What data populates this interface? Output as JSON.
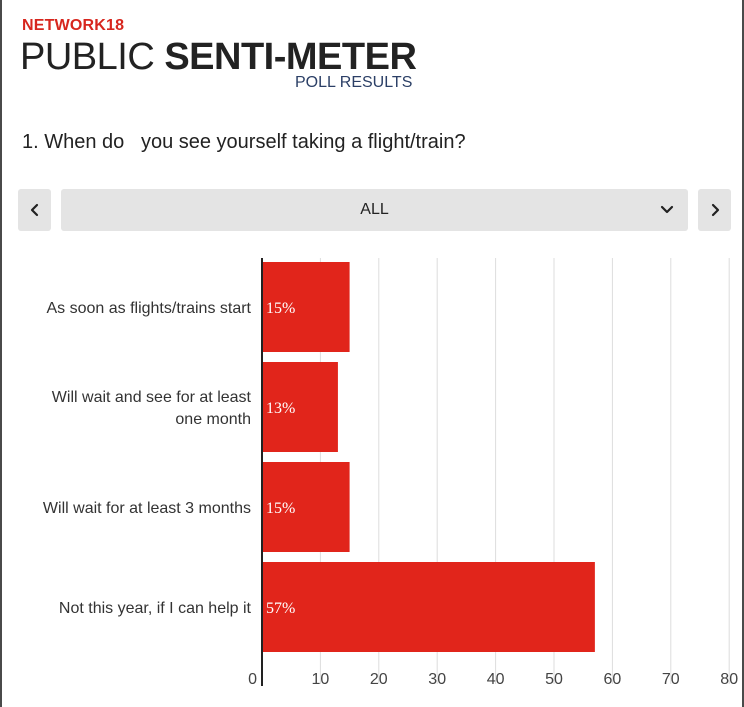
{
  "header": {
    "brand": "NETWORK18",
    "title_light": "PUBLIC ",
    "title_bold": "SENTI-METER",
    "subtitle": "POLL RESULTS"
  },
  "question": "1. When do   you see yourself taking a flight/train?",
  "filter": {
    "selected": "ALL",
    "prev_icon": "chevron-left-icon",
    "next_icon": "chevron-right-icon",
    "dropdown_icon": "chevron-down-icon"
  },
  "colors": {
    "bar": "#e1251b",
    "brand": "#d7261e",
    "subtitle": "#2b3f66",
    "control_bg": "#e4e4e4"
  },
  "chart_data": {
    "type": "bar",
    "orientation": "horizontal",
    "categories": [
      [
        "As soon as flights/trains start"
      ],
      [
        "Will wait and see for at least",
        "one month"
      ],
      [
        "Will wait for at least 3 months"
      ],
      [
        "Not this year, if I can help it"
      ]
    ],
    "values": [
      15,
      13,
      15,
      57
    ],
    "data_labels": [
      "15%",
      "13%",
      "15%",
      "57%"
    ],
    "xlim": [
      0,
      80
    ],
    "x_ticks": [
      0,
      10,
      20,
      30,
      40,
      50,
      60,
      70,
      80
    ],
    "grid": true,
    "legend": false
  }
}
